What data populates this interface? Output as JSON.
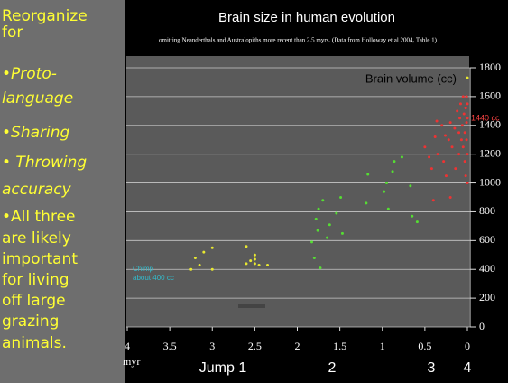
{
  "slide_text": [
    "Reorganize",
    "for",
    "•Proto-",
    "language",
    "•Sharing",
    "• Throwing",
    "accuracy",
    "•All three",
    "are likely",
    "important",
    "for living",
    "off large",
    "grazing",
    "animals."
  ],
  "chart_data": {
    "type": "scatter",
    "title": "Brain size in human evolution",
    "subtitle": "omitting Neanderthals and Australopiths more recent than 2.5 myrs. (Data from Holloway et al 2004, Table 1)",
    "y_label": "Brain volume (cc)",
    "x_label": "myr",
    "annotations": [
      "1440 cc",
      "Chimp",
      "about 400 cc"
    ],
    "jump_labels": [
      "Jump 1",
      "2",
      "3",
      "4"
    ],
    "xlim": [
      4,
      0
    ],
    "xticks": [
      4,
      3.5,
      3,
      2.5,
      2,
      1.5,
      1,
      0.5,
      0
    ],
    "ylim": [
      0,
      1800
    ],
    "yticks": [
      0,
      200,
      400,
      600,
      800,
      1000,
      1200,
      1400,
      1600,
      1800
    ],
    "grid": true,
    "series": [
      {
        "color": "#e8e830",
        "x": [
          3.2,
          3.1,
          3.15,
          3.25,
          3.0,
          3.0,
          2.6,
          2.6,
          2.5,
          2.5,
          2.5,
          2.45,
          2.35,
          2.55,
          0.0
        ],
        "values": [
          480,
          520,
          430,
          400,
          550,
          400,
          560,
          440,
          500,
          470,
          440,
          430,
          430,
          460,
          1730
        ]
      },
      {
        "color": "#55dd33",
        "x": [
          1.78,
          1.75,
          1.76,
          1.83,
          1.8,
          1.73,
          1.7,
          1.65,
          1.62,
          1.54,
          1.49,
          1.47,
          1.19,
          1.17,
          0.98,
          0.95,
          0.93,
          0.88,
          0.86,
          0.65,
          0.59,
          0.77,
          0.67
        ],
        "values": [
          750,
          820,
          670,
          590,
          480,
          410,
          880,
          620,
          710,
          790,
          900,
          650,
          860,
          1060,
          940,
          1000,
          820,
          1080,
          1150,
          770,
          730,
          1180,
          980
        ]
      },
      {
        "color": "#ee3333",
        "x": [
          0.5,
          0.45,
          0.42,
          0.4,
          0.38,
          0.35,
          0.3,
          0.28,
          0.25,
          0.22,
          0.2,
          0.18,
          0.15,
          0.14,
          0.12,
          0.1,
          0.1,
          0.09,
          0.08,
          0.07,
          0.06,
          0.05,
          0.05,
          0.04,
          0.03,
          0.03,
          0.02,
          0.02,
          0.01,
          0.01,
          0.01,
          0.0,
          0.0,
          0.0,
          0.0,
          0.36,
          0.26,
          0.2
        ],
        "values": [
          1250,
          1180,
          1100,
          880,
          1320,
          1200,
          1400,
          1150,
          1050,
          1300,
          1420,
          1250,
          1380,
          1100,
          1500,
          1350,
          1200,
          1450,
          1550,
          1300,
          1400,
          1600,
          1250,
          1480,
          1350,
          1150,
          1520,
          1050,
          1420,
          1300,
          1600,
          1450,
          1200,
          1000,
          1550,
          1430,
          1330,
          900
        ]
      }
    ]
  }
}
